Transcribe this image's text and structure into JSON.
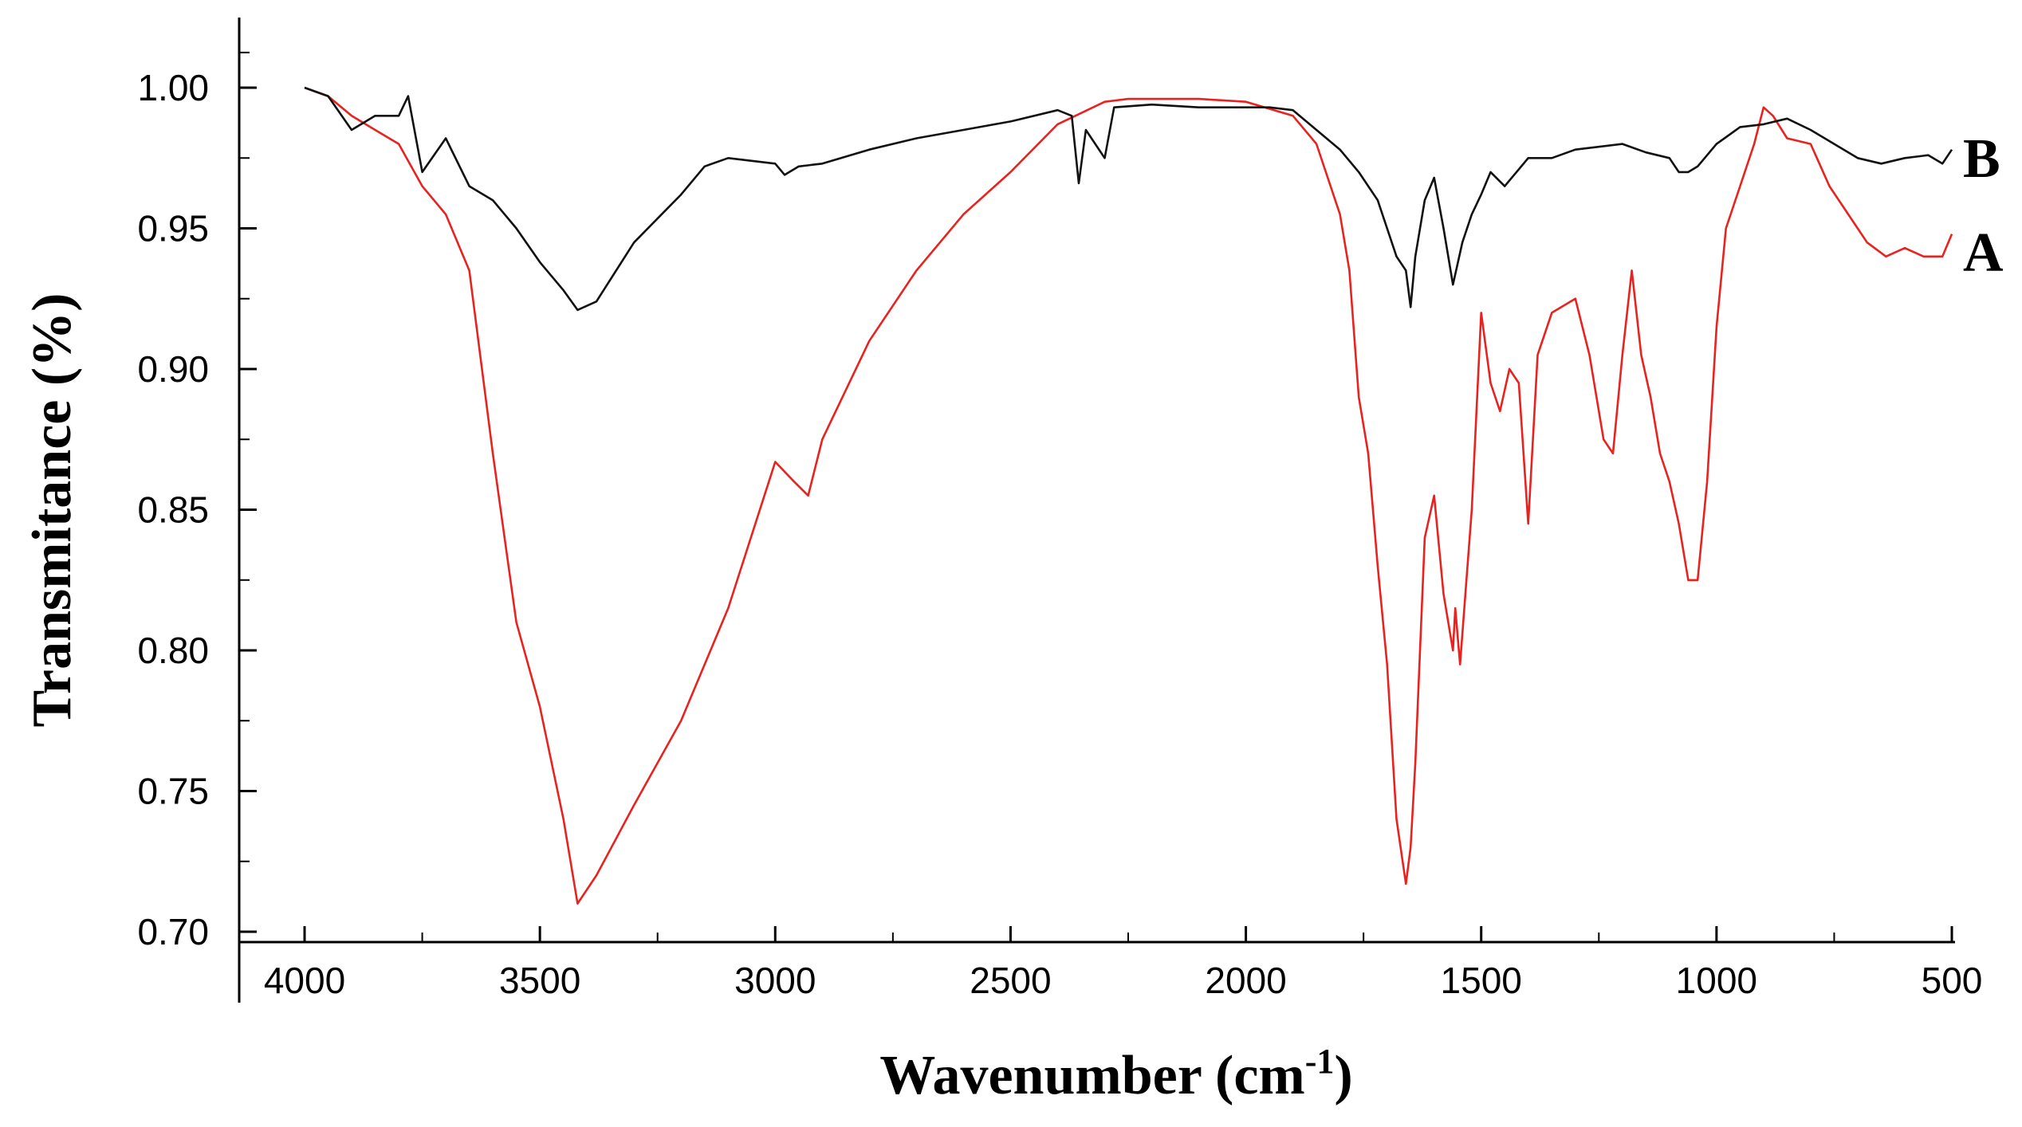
{
  "chart_data": {
    "type": "line",
    "title": "",
    "xlabel": "Wavenumber (cm",
    "xlabel_sup": "-1",
    "xlabel_close": ")",
    "ylabel": "Transmitance (%)",
    "xlim": [
      4000,
      500
    ],
    "ylim": [
      0.7,
      1.02
    ],
    "x_ticks": [
      4000,
      3500,
      3000,
      2500,
      2000,
      1500,
      1000,
      500
    ],
    "x_tick_labels": [
      "4000",
      "3500",
      "3000",
      "2500",
      "2000",
      "1500",
      "1000",
      "500"
    ],
    "y_ticks": [
      0.7,
      0.75,
      0.8,
      0.85,
      0.9,
      0.95,
      1.0
    ],
    "y_tick_labels": [
      "0.70",
      "0.75",
      "0.80",
      "0.85",
      "0.90",
      "0.95",
      "1.00"
    ],
    "grid": false,
    "series": [
      {
        "name": "A",
        "color": "#e8231f",
        "x": [
          4000,
          3950,
          3900,
          3850,
          3800,
          3750,
          3700,
          3650,
          3600,
          3550,
          3500,
          3450,
          3420,
          3380,
          3300,
          3200,
          3100,
          3000,
          2960,
          2930,
          2900,
          2800,
          2700,
          2600,
          2500,
          2400,
          2300,
          2250,
          2100,
          2000,
          1900,
          1850,
          1800,
          1780,
          1760,
          1740,
          1720,
          1700,
          1680,
          1660,
          1650,
          1640,
          1620,
          1600,
          1580,
          1560,
          1555,
          1545,
          1520,
          1500,
          1480,
          1460,
          1440,
          1420,
          1400,
          1380,
          1350,
          1300,
          1270,
          1240,
          1220,
          1200,
          1180,
          1160,
          1140,
          1120,
          1100,
          1080,
          1060,
          1040,
          1020,
          1000,
          980,
          950,
          920,
          900,
          880,
          850,
          800,
          760,
          720,
          680,
          640,
          600,
          560,
          520,
          500
        ],
        "y": [
          1.0,
          0.997,
          0.99,
          0.985,
          0.98,
          0.965,
          0.955,
          0.935,
          0.87,
          0.81,
          0.78,
          0.74,
          0.71,
          0.72,
          0.745,
          0.775,
          0.815,
          0.867,
          0.86,
          0.855,
          0.875,
          0.91,
          0.935,
          0.955,
          0.97,
          0.987,
          0.995,
          0.996,
          0.996,
          0.995,
          0.99,
          0.98,
          0.955,
          0.935,
          0.89,
          0.87,
          0.83,
          0.795,
          0.74,
          0.717,
          0.73,
          0.76,
          0.84,
          0.855,
          0.82,
          0.8,
          0.815,
          0.795,
          0.85,
          0.92,
          0.895,
          0.885,
          0.9,
          0.895,
          0.845,
          0.905,
          0.92,
          0.925,
          0.905,
          0.875,
          0.87,
          0.905,
          0.935,
          0.905,
          0.89,
          0.87,
          0.86,
          0.845,
          0.825,
          0.825,
          0.86,
          0.915,
          0.95,
          0.965,
          0.98,
          0.993,
          0.99,
          0.982,
          0.98,
          0.965,
          0.955,
          0.945,
          0.94,
          0.943,
          0.94,
          0.94,
          0.948
        ]
      },
      {
        "name": "B",
        "color": "#111111",
        "x": [
          4000,
          3950,
          3900,
          3850,
          3800,
          3780,
          3750,
          3700,
          3650,
          3600,
          3550,
          3500,
          3450,
          3420,
          3380,
          3300,
          3200,
          3150,
          3100,
          3000,
          2980,
          2950,
          2900,
          2800,
          2700,
          2600,
          2500,
          2400,
          2370,
          2355,
          2340,
          2300,
          2280,
          2200,
          2100,
          2000,
          1950,
          1900,
          1850,
          1800,
          1760,
          1720,
          1700,
          1680,
          1660,
          1650,
          1640,
          1620,
          1600,
          1580,
          1560,
          1540,
          1520,
          1500,
          1480,
          1450,
          1400,
          1350,
          1300,
          1200,
          1150,
          1100,
          1080,
          1060,
          1040,
          1000,
          950,
          900,
          850,
          800,
          750,
          700,
          650,
          600,
          550,
          520,
          500
        ],
        "y": [
          1.0,
          0.997,
          0.985,
          0.99,
          0.99,
          0.997,
          0.97,
          0.982,
          0.965,
          0.96,
          0.95,
          0.938,
          0.928,
          0.921,
          0.924,
          0.945,
          0.962,
          0.972,
          0.975,
          0.973,
          0.969,
          0.972,
          0.973,
          0.978,
          0.982,
          0.985,
          0.988,
          0.992,
          0.99,
          0.966,
          0.985,
          0.975,
          0.993,
          0.994,
          0.993,
          0.993,
          0.993,
          0.992,
          0.985,
          0.978,
          0.97,
          0.96,
          0.95,
          0.94,
          0.935,
          0.922,
          0.94,
          0.96,
          0.968,
          0.95,
          0.93,
          0.945,
          0.955,
          0.962,
          0.97,
          0.965,
          0.975,
          0.975,
          0.978,
          0.98,
          0.977,
          0.975,
          0.97,
          0.97,
          0.972,
          0.98,
          0.986,
          0.987,
          0.989,
          0.985,
          0.98,
          0.975,
          0.973,
          0.975,
          0.976,
          0.973,
          0.978
        ]
      }
    ]
  }
}
